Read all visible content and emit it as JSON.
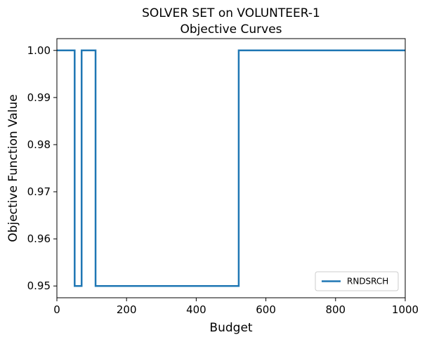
{
  "chart_data": {
    "type": "line",
    "title_line1": "SOLVER SET on VOLUNTEER-1",
    "title_line2": "Objective Curves",
    "xlabel": "Budget",
    "ylabel": "Objective Function Value",
    "xlim": [
      0,
      1000
    ],
    "ylim": [
      0.9475,
      1.0025
    ],
    "x_ticks": [
      0,
      200,
      400,
      600,
      800,
      1000
    ],
    "x_tick_labels": [
      "0",
      "200",
      "400",
      "600",
      "800",
      "1000"
    ],
    "y_ticks": [
      0.95,
      0.96,
      0.97,
      0.98,
      0.99,
      1.0
    ],
    "y_tick_labels": [
      "0.95",
      "0.96",
      "0.97",
      "0.98",
      "0.99",
      "1.00"
    ],
    "grid": false,
    "legend_position": "lower-right",
    "series": [
      {
        "name": "RNDSRCH",
        "color": "#1f77b4",
        "x": [
          0,
          51,
          51,
          71,
          71,
          111,
          111,
          522,
          522,
          1000
        ],
        "y": [
          1.0,
          1.0,
          0.95,
          0.95,
          1.0,
          1.0,
          0.95,
          0.95,
          1.0,
          1.0
        ]
      }
    ]
  }
}
